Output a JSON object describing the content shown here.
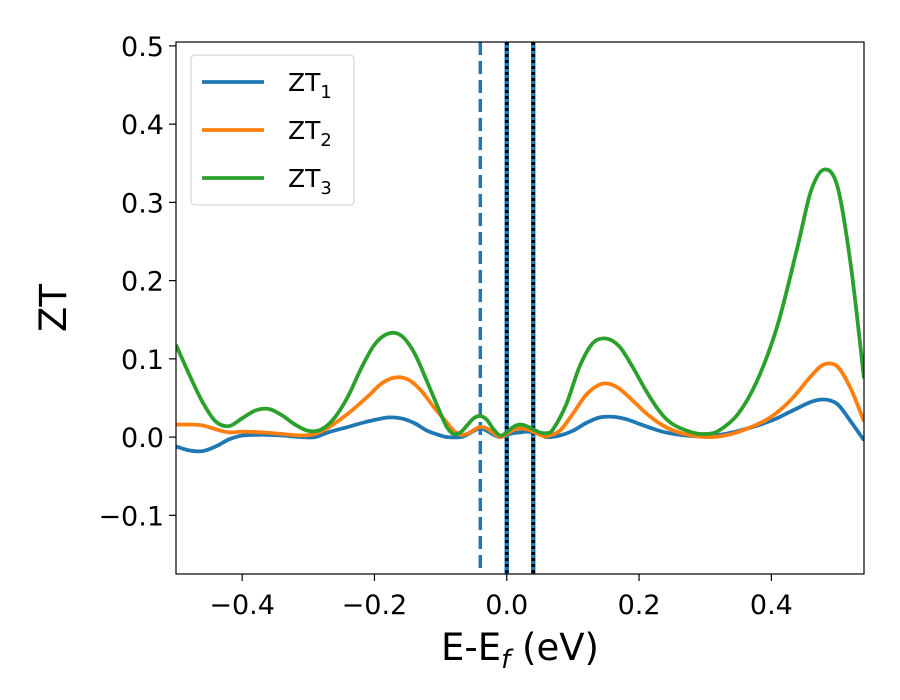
{
  "chart_data": {
    "type": "line",
    "title": "",
    "xlabel": "E-E",
    "xlabel_sub": "f",
    "xlabel_unit": " (eV)",
    "ylabel": "ZT",
    "xlim": [
      -0.5,
      0.54
    ],
    "ylim": [
      -0.175,
      0.505
    ],
    "xticks": [
      {
        "value": -0.4,
        "label": "−0.4"
      },
      {
        "value": -0.2,
        "label": "−0.2"
      },
      {
        "value": 0.0,
        "label": "0.0"
      },
      {
        "value": 0.2,
        "label": "0.2"
      },
      {
        "value": 0.4,
        "label": "0.4"
      }
    ],
    "yticks": [
      {
        "value": -0.1,
        "label": "−0.1"
      },
      {
        "value": 0.0,
        "label": "0.0"
      },
      {
        "value": 0.1,
        "label": "0.1"
      },
      {
        "value": 0.2,
        "label": "0.2"
      },
      {
        "value": 0.3,
        "label": "0.3"
      },
      {
        "value": 0.4,
        "label": "0.4"
      },
      {
        "value": 0.5,
        "label": "0.5"
      }
    ],
    "grid": false,
    "legend_position": "top-left",
    "vertical_lines": [
      {
        "x": -0.04,
        "style": "dashed",
        "color": "#1f77b4"
      },
      {
        "x": 0.0,
        "style": "solid",
        "color": "#1f77b4"
      },
      {
        "x": 0.0,
        "style": "dotted",
        "color": "#000000"
      },
      {
        "x": 0.04,
        "style": "solid",
        "color": "#1f77b4"
      },
      {
        "x": 0.04,
        "style": "dotted",
        "color": "#000000"
      }
    ],
    "series": [
      {
        "name": "ZT",
        "sub": "1",
        "color": "#1f77b4",
        "points": [
          [
            -0.5,
            -0.012
          ],
          [
            -0.48,
            -0.017
          ],
          [
            -0.46,
            -0.018
          ],
          [
            -0.44,
            -0.012
          ],
          [
            -0.42,
            -0.003
          ],
          [
            -0.4,
            0.002
          ],
          [
            -0.37,
            0.003
          ],
          [
            -0.34,
            0.002
          ],
          [
            -0.31,
            0.0
          ],
          [
            -0.29,
            0.0
          ],
          [
            -0.27,
            0.006
          ],
          [
            -0.24,
            0.013
          ],
          [
            -0.21,
            0.02
          ],
          [
            -0.18,
            0.025
          ],
          [
            -0.16,
            0.024
          ],
          [
            -0.14,
            0.018
          ],
          [
            -0.12,
            0.008
          ],
          [
            -0.1,
            0.002
          ],
          [
            -0.09,
            0.0
          ],
          [
            -0.07,
            0.0
          ],
          [
            -0.06,
            0.003
          ],
          [
            -0.05,
            0.008
          ],
          [
            -0.04,
            0.011
          ],
          [
            -0.03,
            0.008
          ],
          [
            -0.02,
            0.003
          ],
          [
            -0.01,
            0.0
          ],
          [
            0.0,
            0.003
          ],
          [
            0.01,
            0.005
          ],
          [
            0.02,
            0.006
          ],
          [
            0.03,
            0.007
          ],
          [
            0.04,
            0.006
          ],
          [
            0.05,
            0.004
          ],
          [
            0.06,
            0.0
          ],
          [
            0.08,
            0.002
          ],
          [
            0.1,
            0.008
          ],
          [
            0.12,
            0.018
          ],
          [
            0.14,
            0.025
          ],
          [
            0.16,
            0.026
          ],
          [
            0.18,
            0.023
          ],
          [
            0.2,
            0.017
          ],
          [
            0.22,
            0.011
          ],
          [
            0.24,
            0.006
          ],
          [
            0.27,
            0.002
          ],
          [
            0.3,
            0.001
          ],
          [
            0.33,
            0.004
          ],
          [
            0.36,
            0.01
          ],
          [
            0.4,
            0.021
          ],
          [
            0.43,
            0.033
          ],
          [
            0.46,
            0.045
          ],
          [
            0.48,
            0.048
          ],
          [
            0.5,
            0.042
          ],
          [
            0.52,
            0.02
          ],
          [
            0.54,
            -0.004
          ]
        ]
      },
      {
        "name": "ZT",
        "sub": "2",
        "color": "#ff7f0e",
        "points": [
          [
            -0.5,
            0.016
          ],
          [
            -0.48,
            0.016
          ],
          [
            -0.46,
            0.015
          ],
          [
            -0.44,
            0.01
          ],
          [
            -0.42,
            0.006
          ],
          [
            -0.4,
            0.007
          ],
          [
            -0.37,
            0.006
          ],
          [
            -0.34,
            0.004
          ],
          [
            -0.31,
            0.002
          ],
          [
            -0.29,
            0.004
          ],
          [
            -0.27,
            0.012
          ],
          [
            -0.24,
            0.03
          ],
          [
            -0.21,
            0.052
          ],
          [
            -0.19,
            0.068
          ],
          [
            -0.17,
            0.076
          ],
          [
            -0.15,
            0.074
          ],
          [
            -0.13,
            0.06
          ],
          [
            -0.11,
            0.038
          ],
          [
            -0.09,
            0.018
          ],
          [
            -0.08,
            0.008
          ],
          [
            -0.07,
            0.003
          ],
          [
            -0.06,
            0.004
          ],
          [
            -0.05,
            0.009
          ],
          [
            -0.04,
            0.013
          ],
          [
            -0.03,
            0.011
          ],
          [
            -0.02,
            0.005
          ],
          [
            -0.01,
            0.0
          ],
          [
            0.0,
            0.004
          ],
          [
            0.01,
            0.009
          ],
          [
            0.02,
            0.011
          ],
          [
            0.03,
            0.01
          ],
          [
            0.04,
            0.007
          ],
          [
            0.05,
            0.003
          ],
          [
            0.06,
            0.001
          ],
          [
            0.08,
            0.008
          ],
          [
            0.1,
            0.03
          ],
          [
            0.12,
            0.054
          ],
          [
            0.14,
            0.067
          ],
          [
            0.155,
            0.068
          ],
          [
            0.17,
            0.062
          ],
          [
            0.19,
            0.047
          ],
          [
            0.21,
            0.031
          ],
          [
            0.23,
            0.018
          ],
          [
            0.25,
            0.009
          ],
          [
            0.28,
            0.002
          ],
          [
            0.31,
            0.0
          ],
          [
            0.34,
            0.004
          ],
          [
            0.37,
            0.013
          ],
          [
            0.4,
            0.026
          ],
          [
            0.43,
            0.048
          ],
          [
            0.46,
            0.078
          ],
          [
            0.48,
            0.093
          ],
          [
            0.5,
            0.09
          ],
          [
            0.52,
            0.062
          ],
          [
            0.54,
            0.02
          ]
        ]
      },
      {
        "name": "ZT",
        "sub": "3",
        "color": "#2ca02c",
        "points": [
          [
            -0.5,
            0.118
          ],
          [
            -0.48,
            0.08
          ],
          [
            -0.46,
            0.045
          ],
          [
            -0.44,
            0.02
          ],
          [
            -0.42,
            0.014
          ],
          [
            -0.4,
            0.024
          ],
          [
            -0.38,
            0.034
          ],
          [
            -0.36,
            0.036
          ],
          [
            -0.34,
            0.028
          ],
          [
            -0.32,
            0.016
          ],
          [
            -0.3,
            0.008
          ],
          [
            -0.28,
            0.01
          ],
          [
            -0.26,
            0.025
          ],
          [
            -0.24,
            0.052
          ],
          [
            -0.22,
            0.088
          ],
          [
            -0.2,
            0.118
          ],
          [
            -0.18,
            0.132
          ],
          [
            -0.16,
            0.13
          ],
          [
            -0.14,
            0.108
          ],
          [
            -0.12,
            0.07
          ],
          [
            -0.1,
            0.03
          ],
          [
            -0.09,
            0.012
          ],
          [
            -0.08,
            0.004
          ],
          [
            -0.07,
            0.006
          ],
          [
            -0.06,
            0.015
          ],
          [
            -0.05,
            0.024
          ],
          [
            -0.04,
            0.027
          ],
          [
            -0.03,
            0.022
          ],
          [
            -0.02,
            0.01
          ],
          [
            -0.01,
            0.002
          ],
          [
            0.0,
            0.006
          ],
          [
            0.01,
            0.013
          ],
          [
            0.02,
            0.016
          ],
          [
            0.03,
            0.014
          ],
          [
            0.04,
            0.01
          ],
          [
            0.05,
            0.006
          ],
          [
            0.06,
            0.005
          ],
          [
            0.07,
            0.01
          ],
          [
            0.09,
            0.042
          ],
          [
            0.11,
            0.09
          ],
          [
            0.13,
            0.12
          ],
          [
            0.15,
            0.126
          ],
          [
            0.17,
            0.116
          ],
          [
            0.19,
            0.09
          ],
          [
            0.21,
            0.06
          ],
          [
            0.23,
            0.034
          ],
          [
            0.25,
            0.017
          ],
          [
            0.28,
            0.006
          ],
          [
            0.3,
            0.004
          ],
          [
            0.32,
            0.008
          ],
          [
            0.35,
            0.03
          ],
          [
            0.38,
            0.075
          ],
          [
            0.41,
            0.145
          ],
          [
            0.44,
            0.245
          ],
          [
            0.46,
            0.315
          ],
          [
            0.48,
            0.342
          ],
          [
            0.5,
            0.32
          ],
          [
            0.52,
            0.22
          ],
          [
            0.54,
            0.075
          ]
        ]
      }
    ]
  }
}
